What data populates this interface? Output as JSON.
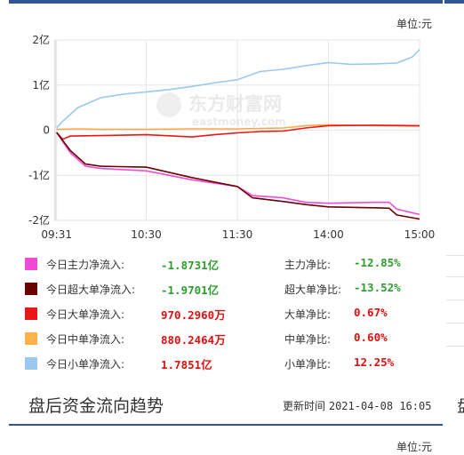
{
  "unit_label": "单位:元",
  "watermark": {
    "cn": "东方财富网",
    "en": "eastmoney.com"
  },
  "chart_data": {
    "type": "line",
    "xlim": [
      "09:30",
      "15:00"
    ],
    "x_ticks": [
      "09:31",
      "10:30",
      "11:30",
      "14:00",
      "15:00"
    ],
    "ylim": [
      -2,
      2
    ],
    "y_ticks": [
      "2亿",
      "1亿",
      "0",
      "-1亿",
      "-2亿"
    ],
    "y_unit": "亿元",
    "grid": true,
    "series": [
      {
        "name": "今日小单净流入",
        "color": "#9ac8ef",
        "x": [
          "09:31",
          "09:35",
          "09:45",
          "10:00",
          "10:15",
          "10:30",
          "10:45",
          "11:00",
          "11:15",
          "11:30",
          "13:15",
          "13:30",
          "13:45",
          "14:00",
          "14:15",
          "14:30",
          "14:45",
          "14:55",
          "15:00"
        ],
        "y": [
          0.05,
          0.2,
          0.5,
          0.72,
          0.8,
          0.85,
          0.9,
          0.97,
          1.05,
          1.12,
          1.3,
          1.35,
          1.43,
          1.5,
          1.46,
          1.47,
          1.49,
          1.62,
          1.79
        ]
      },
      {
        "name": "今日中单净流入",
        "color": "#ffa74d",
        "x": [
          "09:31",
          "09:45",
          "10:00",
          "10:30",
          "11:00",
          "11:30",
          "13:30",
          "13:45",
          "14:00",
          "14:30",
          "15:00"
        ],
        "y": [
          0.02,
          0.03,
          0.02,
          0.02,
          0.03,
          0.03,
          0.05,
          0.1,
          0.12,
          0.1,
          0.09
        ]
      },
      {
        "name": "今日大单净流入",
        "color": "#e81818",
        "x": [
          "09:31",
          "09:35",
          "09:40",
          "10:00",
          "10:30",
          "11:00",
          "11:15",
          "11:30",
          "13:15",
          "13:30",
          "13:45",
          "14:00",
          "14:30",
          "15:00"
        ],
        "y": [
          -0.05,
          -0.2,
          -0.13,
          -0.12,
          -0.1,
          -0.15,
          -0.1,
          -0.06,
          -0.03,
          -0.02,
          0.05,
          0.1,
          0.11,
          0.1
        ]
      },
      {
        "name": "今日主力净流入",
        "color": "#f04bd6",
        "x": [
          "09:31",
          "09:40",
          "09:50",
          "10:00",
          "10:30",
          "11:00",
          "11:30",
          "13:10",
          "13:30",
          "13:45",
          "14:00",
          "14:30",
          "14:40",
          "14:45",
          "15:00"
        ],
        "y": [
          -0.05,
          -0.5,
          -0.8,
          -0.85,
          -0.9,
          -1.1,
          -1.25,
          -1.45,
          -1.5,
          -1.6,
          -1.62,
          -1.6,
          -1.6,
          -1.75,
          -1.87
        ]
      },
      {
        "name": "今日超大单净流入",
        "color": "#6b0000",
        "x": [
          "09:31",
          "09:40",
          "09:50",
          "10:00",
          "10:30",
          "11:00",
          "11:30",
          "13:10",
          "13:30",
          "13:45",
          "14:00",
          "14:30",
          "14:40",
          "14:45",
          "15:00"
        ],
        "y": [
          -0.05,
          -0.45,
          -0.75,
          -0.8,
          -0.82,
          -1.05,
          -1.25,
          -1.5,
          -1.58,
          -1.65,
          -1.7,
          -1.72,
          -1.73,
          -1.88,
          -1.97
        ]
      }
    ]
  },
  "legend": [
    {
      "swatch": "#f04bd6",
      "label": "今日主力净流入:",
      "value": "-1.8731亿",
      "value_color": "green",
      "ratio_label": "主力净比:",
      "ratio": "-12.85%",
      "ratio_color": "green"
    },
    {
      "swatch": "#6b0000",
      "label": "今日超大单净流入:",
      "value": "-1.9701亿",
      "value_color": "green",
      "ratio_label": "超大单净比:",
      "ratio": "-13.52%",
      "ratio_color": "green"
    },
    {
      "swatch": "#e81818",
      "label": "今日大单净流入:",
      "value": "970.2960万",
      "value_color": "red",
      "ratio_label": "大单净比:",
      "ratio": "0.67%",
      "ratio_color": "red"
    },
    {
      "swatch": "#ffb14a",
      "label": "今日中单净流入:",
      "value": "880.2464万",
      "value_color": "red",
      "ratio_label": "中单净比:",
      "ratio": "0.60%",
      "ratio_color": "red"
    },
    {
      "swatch": "#9ac8ef",
      "label": "今日小单净流入:",
      "value": "1.7851亿",
      "value_color": "red",
      "ratio_label": "小单净比:",
      "ratio": "12.25%",
      "ratio_color": "red"
    }
  ],
  "section": {
    "title": "盘后资金流向趋势",
    "update_label": "更新时间",
    "update_value": "2021-04-08 16:05"
  },
  "edge_char": "盘"
}
